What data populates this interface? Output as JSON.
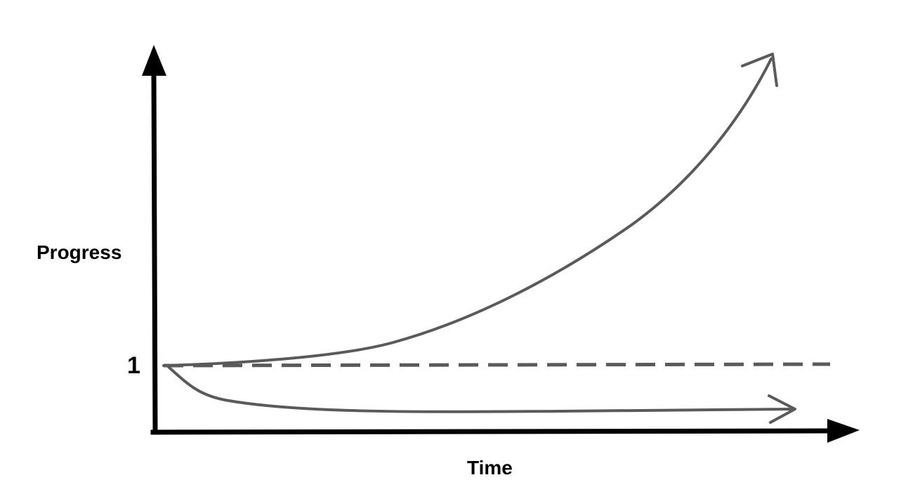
{
  "diagram": {
    "y_axis_label": "Progress",
    "x_axis_label": "Time",
    "baseline_label": "1"
  },
  "colors": {
    "axis": "#000000",
    "curve": "#5a5a5a",
    "baseline": "#5a5a5a"
  }
}
